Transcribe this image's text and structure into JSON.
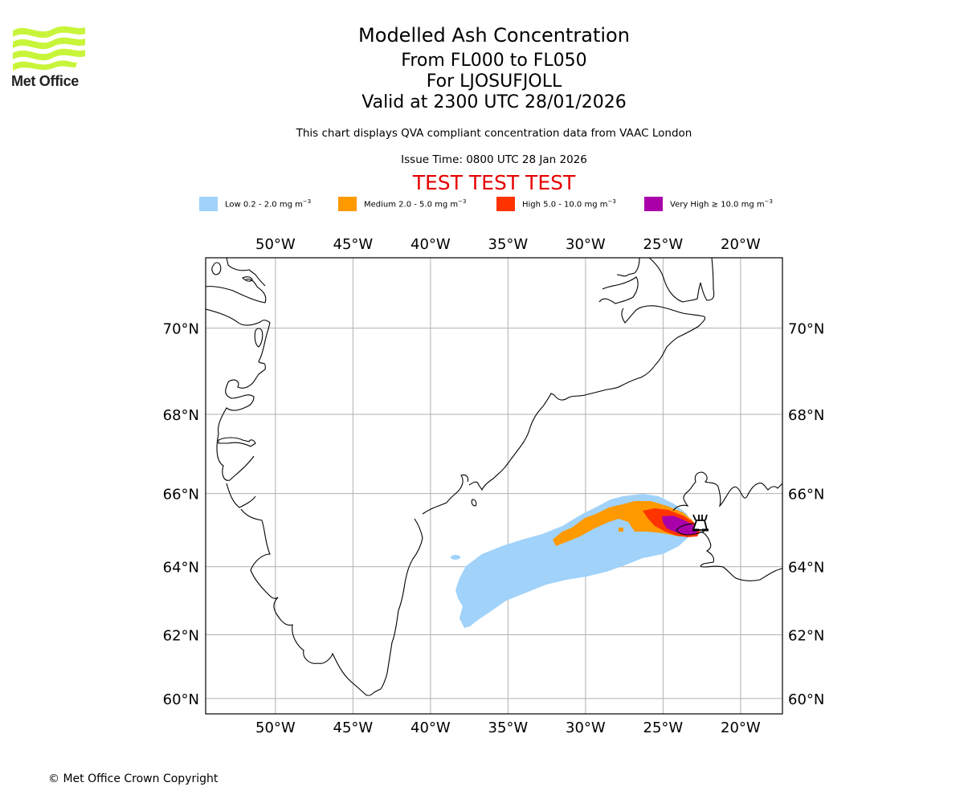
{
  "logo": {
    "name": "Met Office",
    "icon": "met-office-waves-logo",
    "color": "#c8f53a"
  },
  "header": {
    "title": "Modelled Ash Concentration",
    "level_range": "From FL000 to FL050",
    "volcano": "For LJOSUFJOLL",
    "valid_time": "Valid at 2300 UTC 28/01/2026",
    "description": "This chart displays QVA compliant concentration data from VAAC London",
    "issue_time": "Issue Time: 0800 UTC 28 Jan 2026",
    "test_banner": "TEST TEST TEST"
  },
  "legend": [
    {
      "label": "Low 0.2 - 2.0 mg m",
      "unit_exp": "−3",
      "color": "#a0d2fa"
    },
    {
      "label": "Medium 2.0 - 5.0 mg m",
      "unit_exp": "−3",
      "color": "#ff9900"
    },
    {
      "label": "High 5.0 - 10.0 mg m",
      "unit_exp": "−3",
      "color": "#ff3300"
    },
    {
      "label": "Very High ≥ 10.0 mg m",
      "unit_exp": "−3",
      "color": "#aa00aa"
    }
  ],
  "map": {
    "lon_ticks": [
      "50°W",
      "45°W",
      "40°W",
      "35°W",
      "30°W",
      "25°W",
      "20°W"
    ],
    "lon_values": [
      -50,
      -45,
      -40,
      -35,
      -30,
      -25,
      -20
    ],
    "lat_ticks": [
      "70°N",
      "68°N",
      "66°N",
      "64°N",
      "62°N",
      "60°N"
    ],
    "lat_values": [
      70,
      68,
      66,
      64,
      62,
      60
    ],
    "extent": {
      "lon": [
        -54.5,
        -17.3
      ],
      "lat": [
        59.5,
        71.5
      ]
    },
    "grid": true,
    "volcano_marker": {
      "name": "Ljosufjoll",
      "icon": "volcano-icon",
      "lon": -22.7,
      "lat": 64.9
    }
  },
  "footer": {
    "copyright": "© Met Office Crown Copyright"
  }
}
